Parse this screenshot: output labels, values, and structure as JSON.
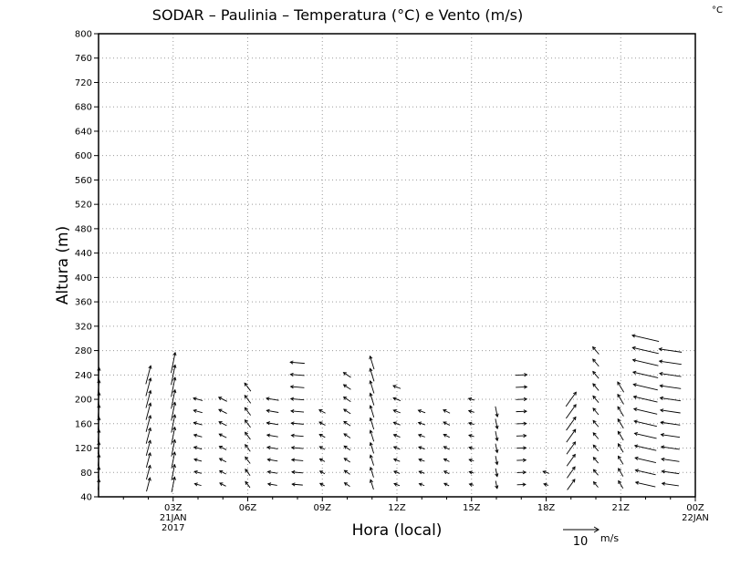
{
  "title": "SODAR – Paulinia – Temperatura (°C) e Vento (m/s)",
  "corner_unit": "°C",
  "ref_vector": {
    "value": "10",
    "unit": "m/s"
  },
  "chart_data": {
    "type": "vector",
    "title": "SODAR – Paulinia – Temperatura (°C) e Vento (m/s)",
    "xlabel": "Hora (local)",
    "ylabel": "Altura (m)",
    "grid": true,
    "x_time_range": [
      "2017-01-21T00Z",
      "2017-01-22T00Z"
    ],
    "ylim": [
      40,
      800
    ],
    "y_ticks": [
      40,
      80,
      120,
      160,
      200,
      240,
      280,
      320,
      360,
      400,
      440,
      480,
      520,
      560,
      600,
      640,
      680,
      720,
      760,
      800
    ],
    "x_ticks": [
      {
        "label": "03Z",
        "sub": [
          "21JAN",
          "2017"
        ]
      },
      {
        "label": "06Z",
        "sub": []
      },
      {
        "label": "09Z",
        "sub": []
      },
      {
        "label": "12Z",
        "sub": []
      },
      {
        "label": "15Z",
        "sub": []
      },
      {
        "label": "18Z",
        "sub": []
      },
      {
        "label": "21Z",
        "sub": []
      },
      {
        "label": "00Z",
        "sub": [
          "22JAN"
        ]
      }
    ],
    "reference_vector_ms": 10,
    "wind_columns": [
      {
        "time": "2017-01-21T00:00Z",
        "top": 240,
        "u": 0.3,
        "v": 3.5
      },
      {
        "time": "2017-01-21T02:00Z",
        "top": 240,
        "u": 1.2,
        "v": 4.5
      },
      {
        "time": "2017-01-21T03:00Z",
        "top": 260,
        "u": 1.0,
        "v": 5.0
      },
      {
        "time": "2017-01-21T04:00Z",
        "top": 200,
        "u": -2.2,
        "v": 0.6
      },
      {
        "time": "2017-01-21T05:00Z",
        "top": 200,
        "u": -2.0,
        "v": 1.0
      },
      {
        "time": "2017-01-21T06:00Z",
        "top": 220,
        "u": -1.5,
        "v": 2.0
      },
      {
        "time": "2017-01-21T07:00Z",
        "top": 200,
        "u": -3.0,
        "v": 0.5
      },
      {
        "time": "2017-01-21T08:00Z",
        "top": 260,
        "u": -3.5,
        "v": 0.3
      },
      {
        "time": "2017-01-21T09:00Z",
        "top": 180,
        "u": -1.5,
        "v": 0.8
      },
      {
        "time": "2017-01-21T10:00Z",
        "top": 240,
        "u": -1.8,
        "v": 1.2
      },
      {
        "time": "2017-01-21T11:00Z",
        "top": 260,
        "u": -1.0,
        "v": 3.2
      },
      {
        "time": "2017-01-21T12:00Z",
        "top": 220,
        "u": -1.8,
        "v": 0.7
      },
      {
        "time": "2017-01-21T13:00Z",
        "top": 180,
        "u": -1.7,
        "v": 0.6
      },
      {
        "time": "2017-01-21T14:00Z",
        "top": 180,
        "u": -1.6,
        "v": 0.8
      },
      {
        "time": "2017-01-21T15:00Z",
        "top": 200,
        "u": -1.4,
        "v": 0.4
      },
      {
        "time": "2017-01-21T16:00Z",
        "top": 180,
        "u": 0.5,
        "v": -2.5
      },
      {
        "time": "2017-01-21T17:00Z",
        "top": 240,
        "u": 2.8,
        "v": 0.1
      },
      {
        "time": "2017-01-21T18:00Z",
        "top": 80,
        "u": -1.5,
        "v": 0.5
      },
      {
        "time": "2017-01-21T19:00Z",
        "top": 200,
        "u": 2.5,
        "v": 3.5
      },
      {
        "time": "2017-01-21T20:00Z",
        "top": 280,
        "u": -1.5,
        "v": 1.8
      },
      {
        "time": "2017-01-21T21:00Z",
        "top": 220,
        "u": -1.5,
        "v": 2.5
      },
      {
        "time": "2017-01-21T22:00Z",
        "top": 300,
        "u": -6.5,
        "v": 1.5
      },
      {
        "time": "2017-01-21T23:00Z",
        "top": 280,
        "u": -5.5,
        "v": 0.8
      }
    ]
  }
}
